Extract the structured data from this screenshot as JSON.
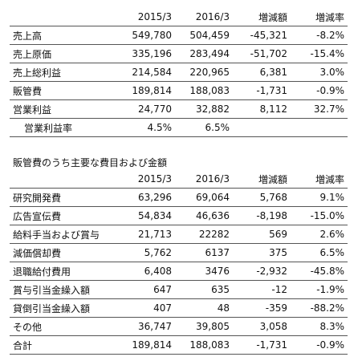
{
  "table1": {
    "headers": [
      "",
      "2015/3",
      "2016/3",
      "増減額",
      "増減率"
    ],
    "rows": [
      [
        "売上高",
        "549,780",
        "504,459",
        "-45,321",
        "-8.2%"
      ],
      [
        "売上原価",
        "335,196",
        "283,494",
        "-51,702",
        "-15.4%"
      ],
      [
        "売上総利益",
        "214,584",
        "220,965",
        "6,381",
        "3.0%"
      ],
      [
        "販管費",
        "189,814",
        "188,083",
        "-1,731",
        "-0.9%"
      ],
      [
        "営業利益",
        "24,770",
        "32,882",
        "8,112",
        "32.7%"
      ],
      [
        "営業利益率",
        "4.5%",
        "6.5%",
        "",
        ""
      ]
    ]
  },
  "table2": {
    "caption": "販管費のうち主要な費目および金額",
    "headers": [
      "",
      "2015/3",
      "2016/3",
      "増減額",
      "増減率"
    ],
    "rows": [
      [
        "研究開発費",
        "63,296",
        "69,064",
        "5,768",
        "9.1%"
      ],
      [
        "広告宣伝費",
        "54,834",
        "46,636",
        "-8,198",
        "-15.0%"
      ],
      [
        "給料手当および賞与",
        "21,713",
        "22282",
        "569",
        "2.6%"
      ],
      [
        "減価償却費",
        "5,762",
        "6137",
        "375",
        "6.5%"
      ],
      [
        "退職給付費用",
        "6,408",
        "3476",
        "-2,932",
        "-45.8%"
      ],
      [
        "賞与引当金繰入額",
        "647",
        "635",
        "-12",
        "-1.9%"
      ],
      [
        "貸倒引当金繰入額",
        "407",
        "48",
        "-359",
        "-88.2%"
      ],
      [
        "その他",
        "36,747",
        "39,805",
        "3,058",
        "8.3%"
      ],
      [
        "合計",
        "189,814",
        "188,083",
        "-1,731",
        "-0.9%"
      ]
    ]
  }
}
